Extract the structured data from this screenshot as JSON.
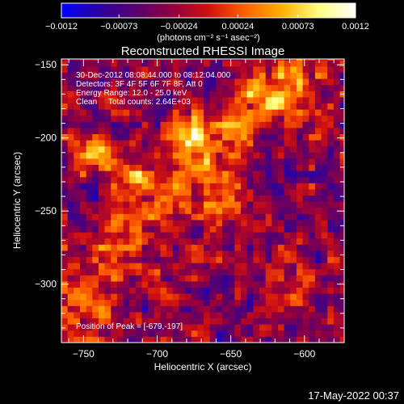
{
  "chart_data": {
    "type": "heatmap",
    "title": "Reconstructed RHESSI Image",
    "xlabel": "Heliocentric X (arcsec)",
    "ylabel": "Heliocentric Y (arcsec)",
    "xlim": [
      -765,
      -573
    ],
    "ylim": [
      -340,
      -146
    ],
    "x_ticks": [
      -750,
      -700,
      -650,
      -600
    ],
    "x_tick_labels": [
      "−750",
      "−700",
      "−650",
      "−600"
    ],
    "y_ticks": [
      -150,
      -200,
      -250,
      -300
    ],
    "y_tick_labels": [
      "−150",
      "−200",
      "−250",
      "−300"
    ],
    "colorbar": {
      "min": -0.0012,
      "max": 0.0012,
      "ticks": [
        -0.0012,
        -0.00073,
        -0.00024,
        0.00024,
        0.00073,
        0.0012
      ],
      "tick_labels": [
        "−0.0012",
        "−0.00073",
        "−0.00024",
        "0.00024",
        "0.00073",
        "0.0012"
      ],
      "units_label": "(photons cm⁻² s⁻¹ asec⁻²)",
      "colors": [
        "#0000ff",
        "#2a00a0",
        "#560070",
        "#900040",
        "#d01010",
        "#ff6000",
        "#ffb000",
        "#ffff80",
        "#ffffff"
      ]
    },
    "annotations": [
      "30-Dec-2012 08:08:44.000 to 08:12:04.000",
      "Detectors: 3F 4F 5F 6F 7F 8F, Att 0",
      "Energy Range: 12.0 - 25.0 keV",
      "Clean     Total counts: 2.64E+03"
    ],
    "peak_label": "Position of Peak = [-679,-197]",
    "peak": [
      -679,
      -197
    ],
    "bright_sources": [
      {
        "x": -679,
        "y": -197,
        "value": 0.0012
      },
      {
        "x": -715,
        "y": -225,
        "value": 0.0009
      },
      {
        "x": -655,
        "y": -240,
        "value": 0.0008
      },
      {
        "x": -745,
        "y": -208,
        "value": 0.0007
      },
      {
        "x": -625,
        "y": -170,
        "value": 0.0006
      },
      {
        "x": -605,
        "y": -305,
        "value": 0.0005
      },
      {
        "x": -738,
        "y": -315,
        "value": 0.0004
      }
    ],
    "grid": false
  },
  "footer": {
    "timestamp": "17-May-2022 00:37"
  }
}
